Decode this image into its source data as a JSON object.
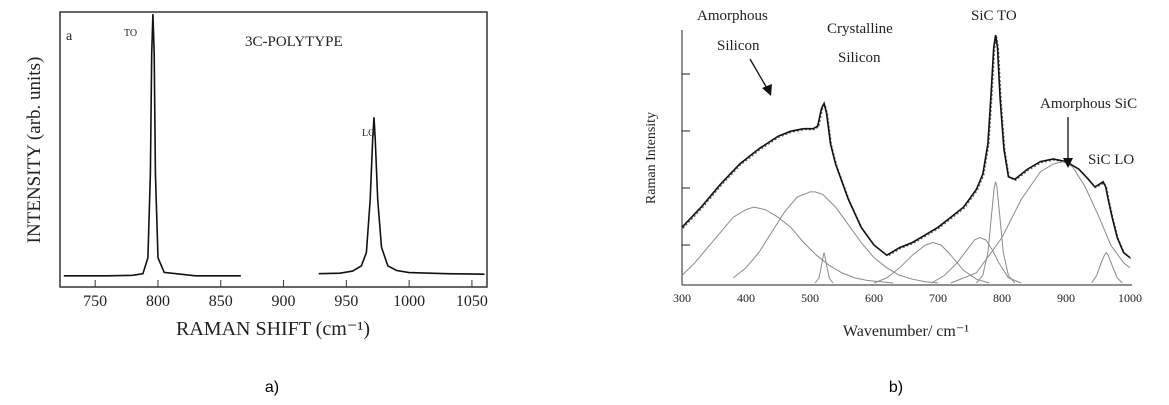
{
  "figure_labels": {
    "a": "a)",
    "b": "b)"
  },
  "chart_data": [
    {
      "type": "line",
      "panel_letter": "a",
      "title": "3C-POLYTYPE",
      "xlabel": "RAMAN SHIFT (cm⁻¹)",
      "ylabel": "INTENSITY (arb. units)",
      "xlim": [
        722,
        1062
      ],
      "ylim": [
        0,
        1
      ],
      "xticks": [
        750,
        800,
        850,
        900,
        950,
        1000,
        1050
      ],
      "grid": false,
      "peaks": [
        {
          "label": "TO",
          "x": 796,
          "y": 1.0
        },
        {
          "label": "LO",
          "x": 972,
          "y": 0.61
        }
      ],
      "series": [
        {
          "x": [
            725,
            760,
            780,
            788,
            792,
            794,
            795,
            796,
            797,
            798,
            800,
            805,
            830,
            866
          ],
          "y": [
            0.012,
            0.012,
            0.014,
            0.02,
            0.08,
            0.4,
            0.85,
            1.0,
            0.85,
            0.4,
            0.08,
            0.025,
            0.012,
            0.012
          ]
        },
        {
          "x": [
            928,
            945,
            955,
            962,
            966,
            969,
            971,
            972,
            973,
            975,
            978,
            983,
            990,
            1000,
            1030,
            1060
          ],
          "y": [
            0.02,
            0.022,
            0.03,
            0.05,
            0.1,
            0.3,
            0.53,
            0.61,
            0.53,
            0.3,
            0.12,
            0.05,
            0.032,
            0.024,
            0.02,
            0.018
          ]
        }
      ]
    },
    {
      "type": "line",
      "xlabel": "Wavenumber/ cm⁻¹",
      "ylabel": "Raman Intensity",
      "xlim": [
        300,
        1000
      ],
      "xticks": [
        300,
        400,
        500,
        600,
        700,
        800,
        900,
        1000
      ],
      "ylim": [
        0,
        1
      ],
      "grid": false,
      "annotations": [
        {
          "lines": [
            "Amorphous",
            "Silicon"
          ],
          "arrow_to": {
            "x": 485,
            "y": 0.61
          }
        },
        {
          "lines": [
            "Crystalline",
            "Silicon"
          ]
        },
        {
          "lines": [
            "SiC TO"
          ]
        },
        {
          "lines": [
            "Amorphous SiC"
          ],
          "arrow_to": {
            "x": 895,
            "y": 0.49
          }
        },
        {
          "lines": [
            "SiC LO"
          ]
        }
      ],
      "series": [
        {
          "x": [
            300,
            330,
            360,
            390,
            420,
            450,
            470,
            490,
            505,
            512,
            518,
            522,
            526,
            532,
            540,
            560,
            580,
            600,
            620,
            640,
            660,
            680,
            700,
            720,
            740,
            760,
            770,
            778,
            783,
            787,
            790,
            793,
            797,
            803,
            810,
            820,
            840,
            860,
            880,
            900,
            920,
            935,
            945,
            952,
            958,
            962,
            966,
            972,
            980,
            990,
            1000
          ],
          "y": [
            0.22,
            0.3,
            0.39,
            0.47,
            0.53,
            0.58,
            0.6,
            0.61,
            0.61,
            0.62,
            0.69,
            0.71,
            0.67,
            0.55,
            0.47,
            0.33,
            0.22,
            0.15,
            0.11,
            0.14,
            0.16,
            0.19,
            0.22,
            0.26,
            0.3,
            0.37,
            0.43,
            0.55,
            0.75,
            0.93,
            0.98,
            0.93,
            0.73,
            0.53,
            0.42,
            0.41,
            0.45,
            0.48,
            0.49,
            0.48,
            0.45,
            0.41,
            0.38,
            0.39,
            0.4,
            0.38,
            0.33,
            0.26,
            0.18,
            0.12,
            0.1
          ]
        },
        {
          "x": [
            300,
            320,
            340,
            360,
            380,
            400,
            412,
            430,
            450,
            470,
            490,
            510,
            530,
            550,
            570,
            590,
            610,
            630
          ],
          "y": [
            0.03,
            0.08,
            0.14,
            0.2,
            0.26,
            0.29,
            0.3,
            0.29,
            0.26,
            0.22,
            0.16,
            0.11,
            0.07,
            0.04,
            0.02,
            0.01,
            0.005,
            0.0
          ]
        },
        {
          "x": [
            380,
            400,
            420,
            440,
            460,
            480,
            500,
            508,
            520,
            540,
            560,
            580,
            600,
            620,
            640,
            660,
            680,
            700
          ],
          "y": [
            0.02,
            0.06,
            0.12,
            0.2,
            0.28,
            0.34,
            0.36,
            0.36,
            0.35,
            0.3,
            0.23,
            0.16,
            0.1,
            0.06,
            0.03,
            0.015,
            0.005,
            0.0
          ]
        },
        {
          "x": [
            508,
            514,
            518,
            521,
            522,
            523,
            526,
            530,
            536
          ],
          "y": [
            0.0,
            0.02,
            0.07,
            0.11,
            0.12,
            0.11,
            0.07,
            0.02,
            0.0
          ]
        },
        {
          "x": [
            600,
            620,
            640,
            660,
            680,
            692,
            705,
            720,
            740,
            760,
            780
          ],
          "y": [
            0.0,
            0.02,
            0.06,
            0.11,
            0.15,
            0.16,
            0.15,
            0.11,
            0.05,
            0.015,
            0.0
          ]
        },
        {
          "x": [
            690,
            710,
            730,
            745,
            757,
            765,
            775,
            785,
            795,
            810,
            830
          ],
          "y": [
            0.0,
            0.03,
            0.08,
            0.13,
            0.17,
            0.18,
            0.17,
            0.13,
            0.08,
            0.02,
            0.0
          ]
        },
        {
          "x": [
            760,
            770,
            778,
            784,
            788,
            790,
            792,
            796,
            802,
            810,
            820
          ],
          "y": [
            0.0,
            0.03,
            0.12,
            0.28,
            0.38,
            0.4,
            0.38,
            0.28,
            0.12,
            0.03,
            0.0
          ]
        },
        {
          "x": [
            720,
            760,
            800,
            830,
            860,
            880,
            895,
            910,
            930,
            950,
            970,
            990,
            1000
          ],
          "y": [
            0.0,
            0.04,
            0.18,
            0.33,
            0.44,
            0.47,
            0.48,
            0.46,
            0.38,
            0.27,
            0.15,
            0.08,
            0.06
          ]
        },
        {
          "x": [
            940,
            948,
            955,
            960,
            963,
            966,
            972,
            980,
            988
          ],
          "y": [
            0.0,
            0.03,
            0.08,
            0.11,
            0.12,
            0.11,
            0.07,
            0.02,
            0.0
          ]
        }
      ]
    }
  ]
}
